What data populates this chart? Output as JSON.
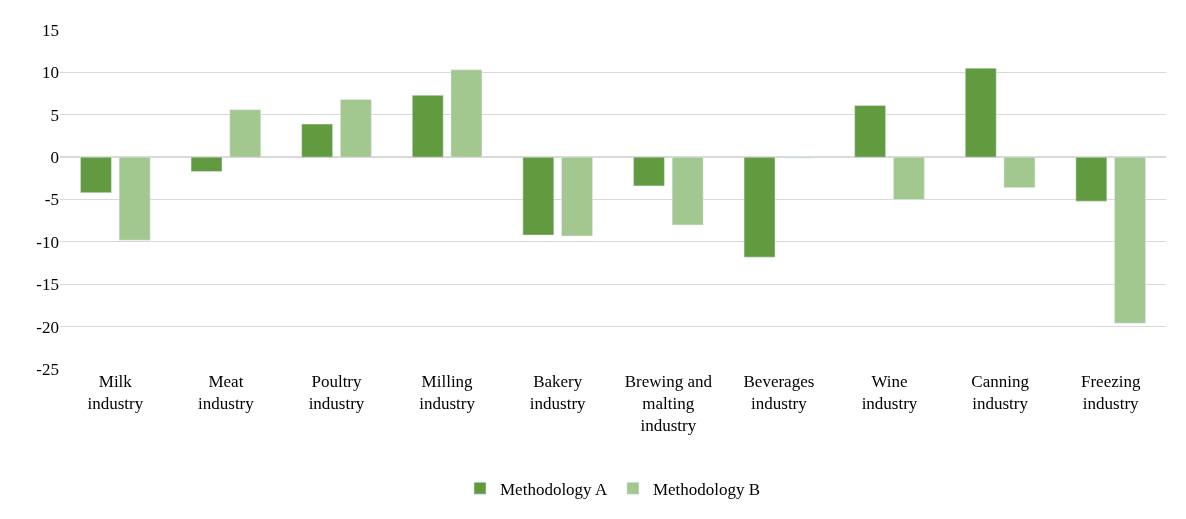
{
  "chart_data": {
    "type": "bar",
    "categories": [
      "Milk industry",
      "Meat industry",
      "Poultry industry",
      "Milling industry",
      "Bakery industry",
      "Brewing and malting industry",
      "Beverages industry",
      "Wine industry",
      "Canning industry",
      "Freezing industry"
    ],
    "series": [
      {
        "name": "Methodology A",
        "color": "#629b3f",
        "values": [
          -4.2,
          -1.7,
          3.9,
          7.3,
          -9.2,
          -3.4,
          -11.8,
          6.1,
          10.5,
          -5.2
        ]
      },
      {
        "name": "Methodology B",
        "color": "#a2c78f",
        "values": [
          -9.8,
          5.6,
          6.8,
          10.3,
          -9.3,
          -8.0,
          -0.1,
          -5.0,
          -3.6,
          -19.6
        ]
      }
    ],
    "ylim": [
      -25,
      15
    ],
    "yticks": [
      -25,
      -20,
      -15,
      -10,
      -5,
      0,
      5,
      10,
      15
    ],
    "grid": "y",
    "legend": "bottom"
  }
}
